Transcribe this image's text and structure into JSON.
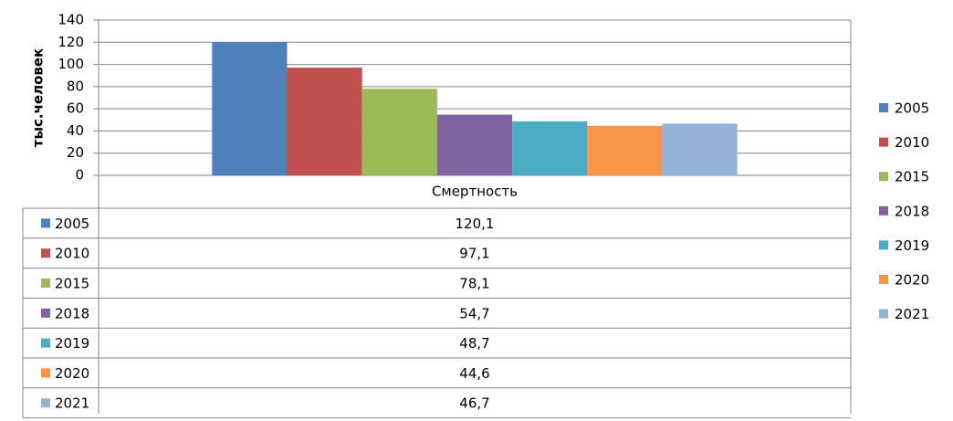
{
  "chart_data": {
    "type": "bar",
    "y_label": "тыс.человек",
    "categories": [
      "Смертность"
    ],
    "series": [
      {
        "name": "2005",
        "color": "#4f81bd",
        "values": [
          120.1
        ],
        "value_labels": [
          "120,1"
        ]
      },
      {
        "name": "2010",
        "color": "#c0504d",
        "values": [
          97.1
        ],
        "value_labels": [
          "97,1"
        ]
      },
      {
        "name": "2015",
        "color": "#9bbb59",
        "values": [
          78.1
        ],
        "value_labels": [
          "78,1"
        ]
      },
      {
        "name": "2018",
        "color": "#8064a2",
        "values": [
          54.7
        ],
        "value_labels": [
          "54,7"
        ]
      },
      {
        "name": "2019",
        "color": "#4bacc6",
        "values": [
          48.7
        ],
        "value_labels": [
          "48,7"
        ]
      },
      {
        "name": "2020",
        "color": "#f79646",
        "values": [
          44.6
        ],
        "value_labels": [
          "44,6"
        ]
      },
      {
        "name": "2021",
        "color": "#95b3d7",
        "values": [
          46.7
        ],
        "value_labels": [
          "46,7"
        ]
      }
    ],
    "ylim": [
      0,
      140
    ],
    "yticks": [
      0,
      20,
      40,
      60,
      80,
      100,
      120,
      140
    ],
    "grid": true,
    "legend": "right"
  }
}
